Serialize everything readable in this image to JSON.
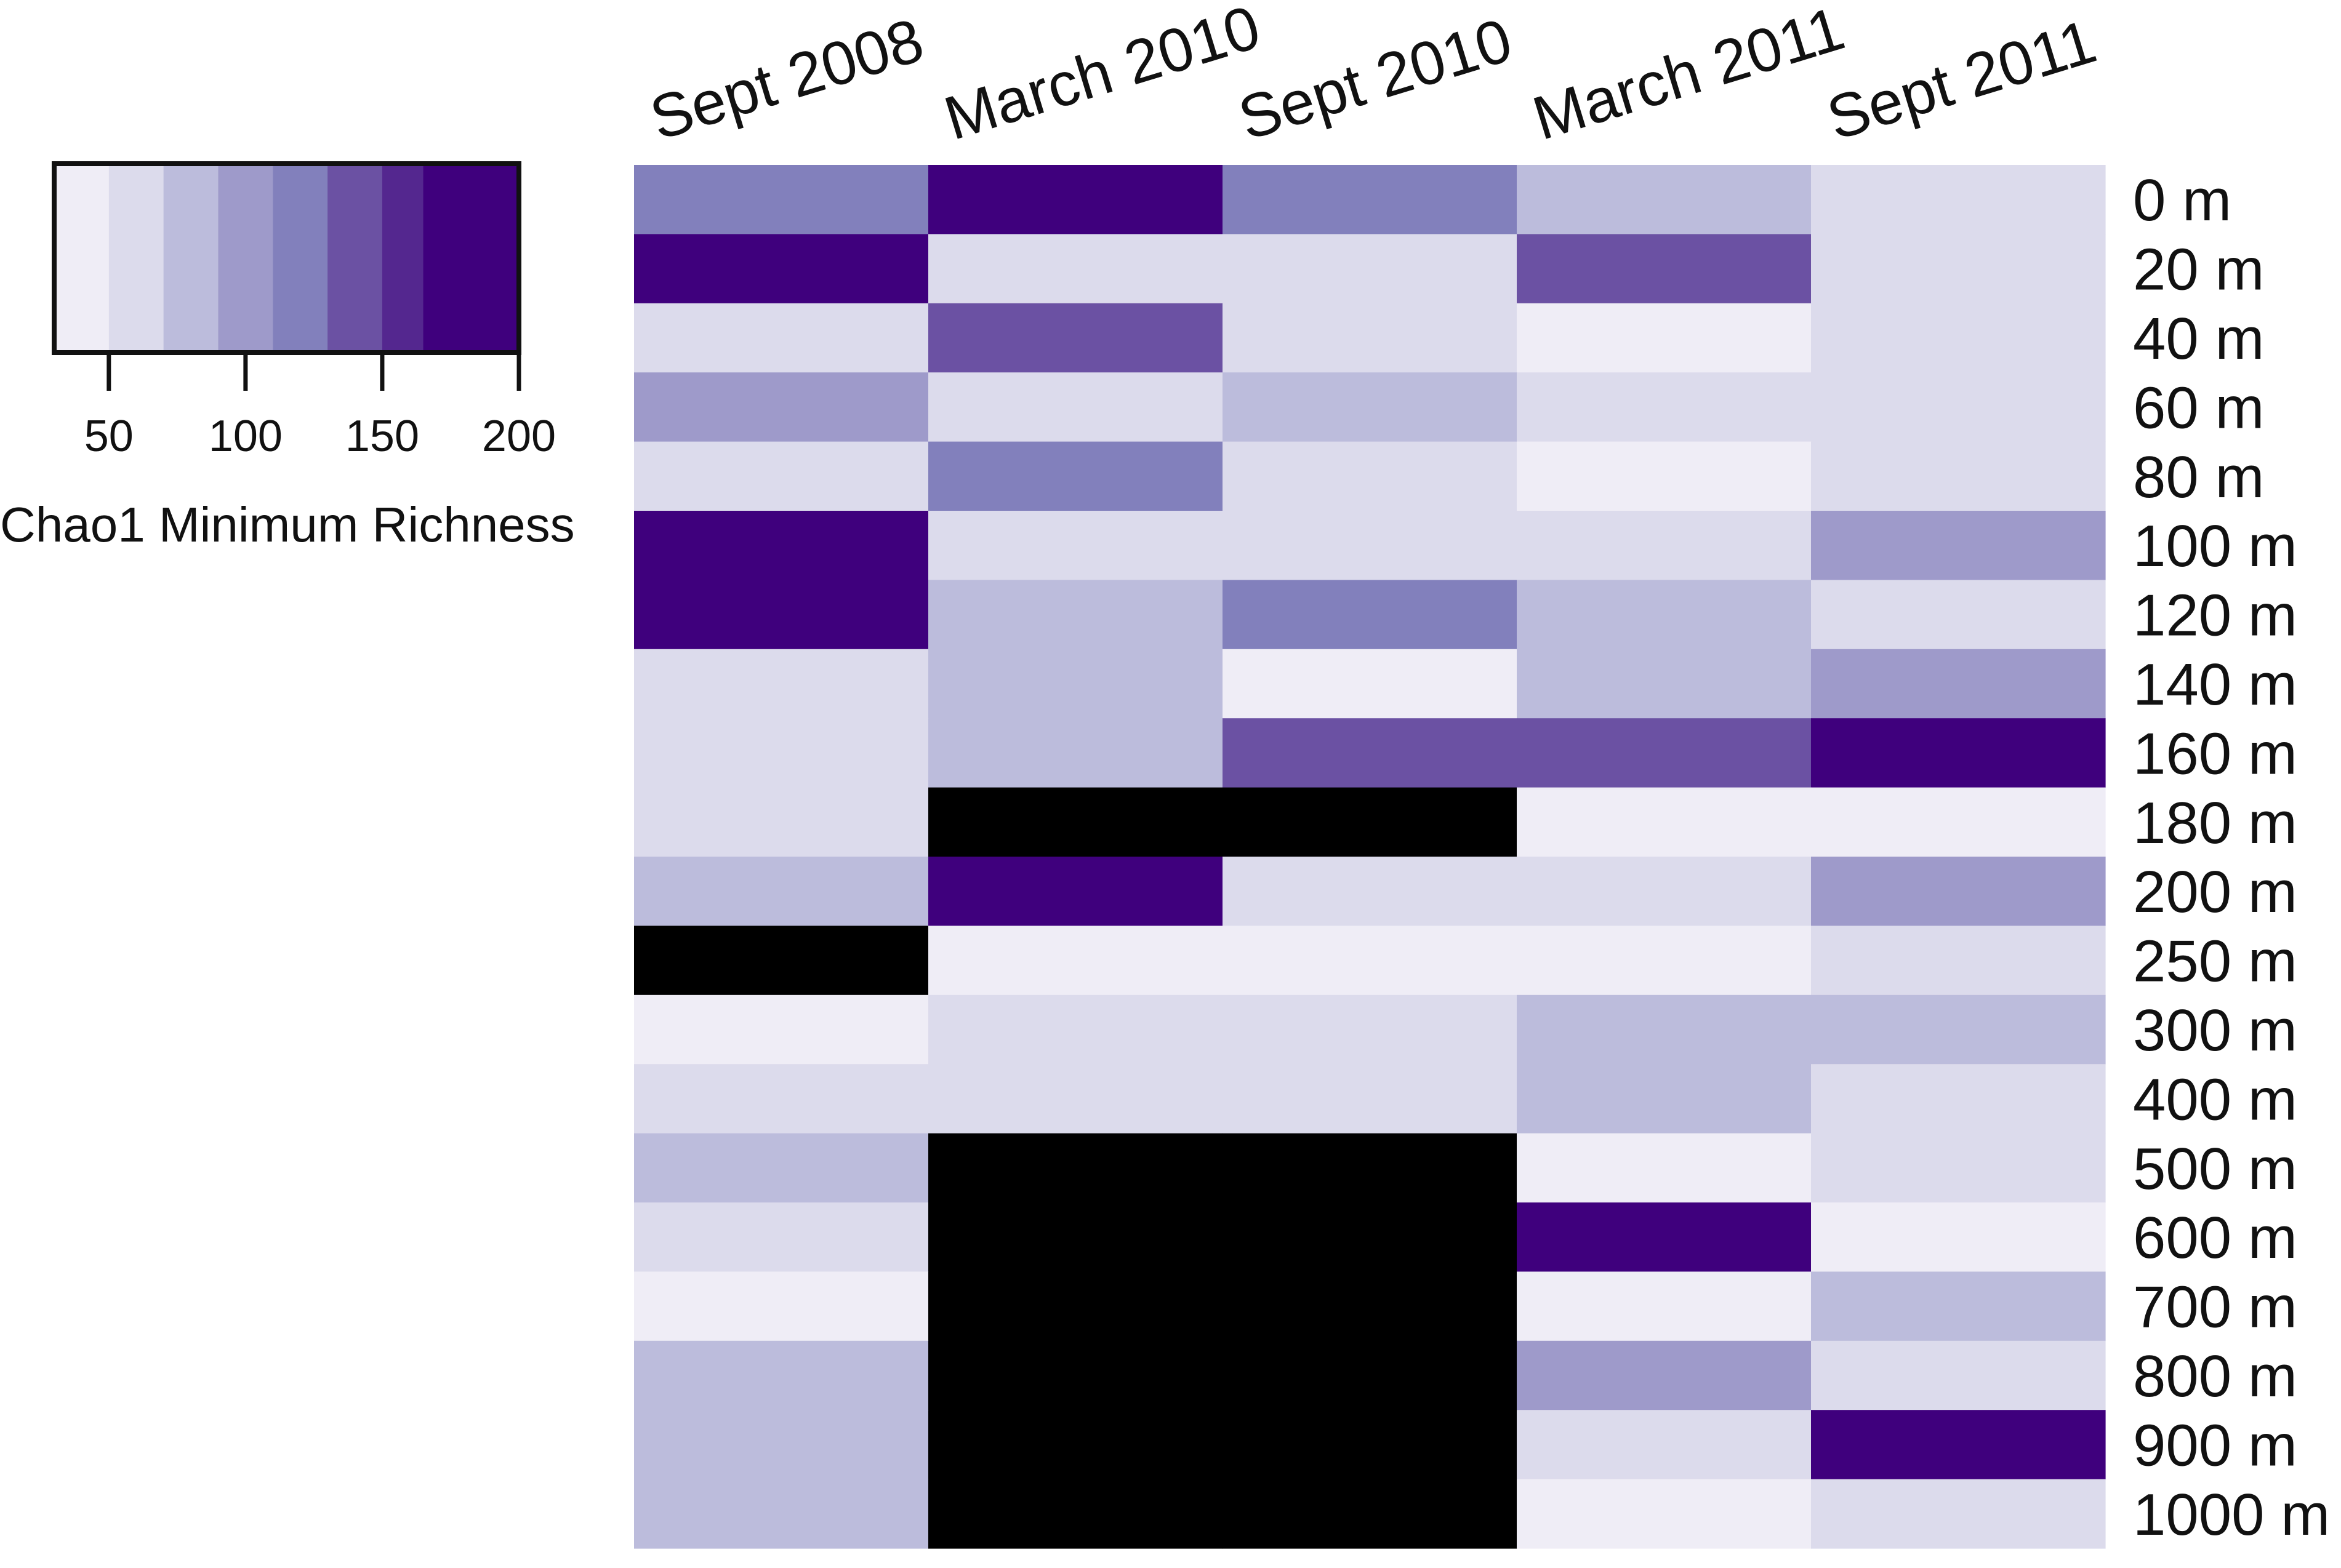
{
  "chart_data": {
    "type": "heatmap",
    "title": "",
    "columns": [
      "Sept 2008",
      "March 2010",
      "Sept 2010",
      "March 2011",
      "Sept 2011"
    ],
    "rows": [
      "0 m",
      "20 m",
      "40 m",
      "60 m",
      "80 m",
      "100 m",
      "120 m",
      "140 m",
      "160 m",
      "180 m",
      "200 m",
      "250 m",
      "300 m",
      "400 m",
      "500 m",
      "600 m",
      "700 m",
      "800 m",
      "900 m",
      "1000 m"
    ],
    "values": [
      [
        115,
        170,
        115,
        80,
        65
      ],
      [
        170,
        65,
        65,
        145,
        65
      ],
      [
        65,
        145,
        65,
        45,
        65
      ],
      [
        95,
        65,
        80,
        65,
        65
      ],
      [
        65,
        115,
        65,
        45,
        65
      ],
      [
        170,
        65,
        65,
        65,
        95
      ],
      [
        190,
        80,
        115,
        80,
        65
      ],
      [
        65,
        80,
        45,
        80,
        95
      ],
      [
        65,
        80,
        145,
        145,
        170
      ],
      [
        65,
        null,
        null,
        45,
        45
      ],
      [
        80,
        190,
        65,
        65,
        95
      ],
      [
        null,
        45,
        45,
        45,
        65
      ],
      [
        45,
        65,
        65,
        80,
        80
      ],
      [
        65,
        65,
        65,
        80,
        65
      ],
      [
        80,
        null,
        null,
        45,
        65
      ],
      [
        65,
        null,
        null,
        170,
        45
      ],
      [
        45,
        null,
        null,
        45,
        80
      ],
      [
        80,
        null,
        null,
        95,
        65
      ],
      [
        80,
        null,
        null,
        65,
        190
      ],
      [
        80,
        null,
        null,
        45,
        65
      ]
    ],
    "missing_color": "#000000",
    "colorbar": {
      "title": "Chao1 Minimum Richness",
      "range": [
        30,
        200
      ],
      "ticks": [
        50,
        100,
        150,
        200
      ],
      "colors": [
        "#efedf6",
        "#dcdbec",
        "#bcbcdc",
        "#9e9aca",
        "#8280bc",
        "#6b51a3",
        "#54278f",
        "#3f007d"
      ],
      "boundaries": [
        30,
        50,
        70,
        90,
        110,
        130,
        150,
        165,
        200
      ],
      "placement": "top-left"
    }
  }
}
